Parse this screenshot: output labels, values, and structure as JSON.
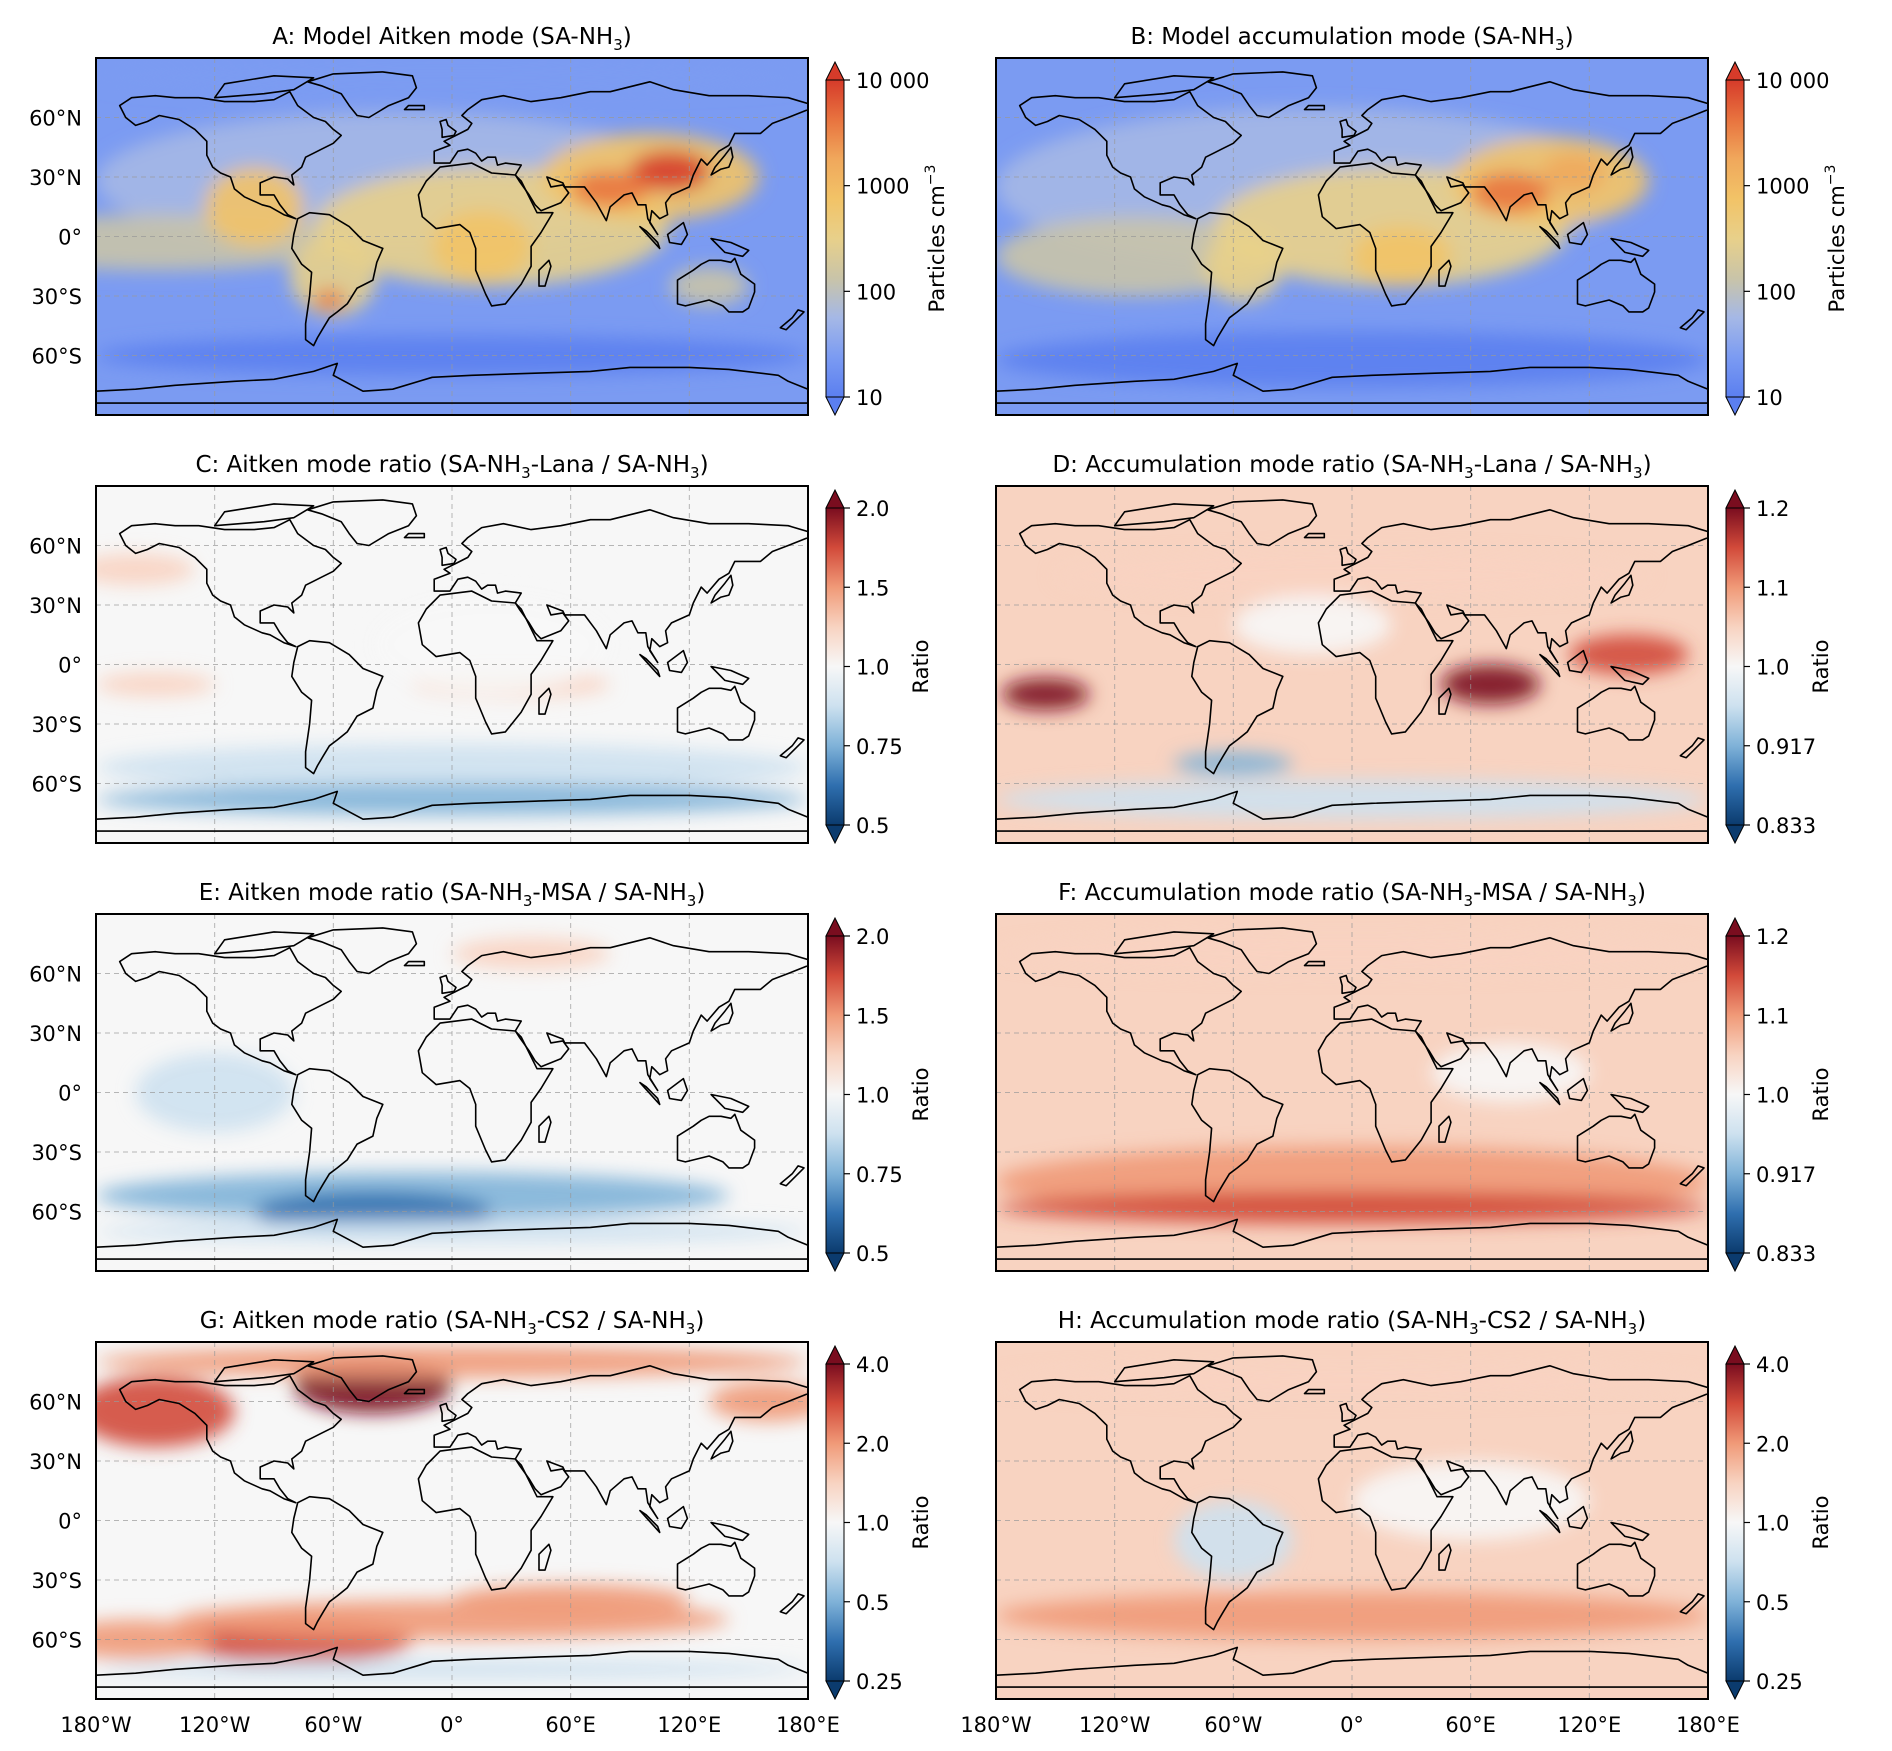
{
  "figure": {
    "x_tick_labels": [
      "180°W",
      "120°W",
      "60°W",
      "0°",
      "60°E",
      "120°E",
      "180°E"
    ],
    "y_tick_labels": [
      "60°N",
      "30°N",
      "0°",
      "30°S",
      "60°S"
    ]
  },
  "colors": {
    "particles_scale": [
      "#5b7ff0",
      "#7b9bf2",
      "#a5b8e6",
      "#c9c4a8",
      "#e8d08a",
      "#f2c367",
      "#f0a85c",
      "#e8733f",
      "#d63b2a"
    ],
    "ratio_scale": [
      "#0b3b6e",
      "#2f6faf",
      "#7fb2d8",
      "#cde1ef",
      "#f7f7f7",
      "#f8d3c1",
      "#f09a78",
      "#d24a3a",
      "#7a0d1f"
    ],
    "ocean_default": "#f3f3f3",
    "coast": "#000000"
  },
  "panels": [
    {
      "id": "A",
      "title_pre": "A: Model Aitken mode (SA-NH",
      "title_sub": "3",
      "title_post": ")",
      "colorbar_label": "Particles cm",
      "colorbar_label_sup": "−3",
      "colorbar_ticks": [
        "10",
        "100",
        "1000",
        "10 000"
      ],
      "scale": "particles",
      "show_y_ticks": true,
      "show_x_ticks": false
    },
    {
      "id": "B",
      "title_pre": "B: Model accumulation mode (SA-NH",
      "title_sub": "3",
      "title_post": ")",
      "colorbar_label": "Particles cm",
      "colorbar_label_sup": "−3",
      "colorbar_ticks": [
        "10",
        "100",
        "1000",
        "10 000"
      ],
      "scale": "particles",
      "show_y_ticks": false,
      "show_x_ticks": false
    },
    {
      "id": "C",
      "title_pre": "C: Aitken mode ratio (SA-NH",
      "title_sub": "3",
      "title_post": "-Lana / SA-NH",
      "title_sub2": "3",
      "title_post2": ")",
      "colorbar_label": "Ratio",
      "colorbar_ticks": [
        "0.5",
        "0.75",
        "1.0",
        "1.5",
        "2.0"
      ],
      "scale": "ratio",
      "show_y_ticks": true,
      "show_x_ticks": false
    },
    {
      "id": "D",
      "title_pre": "D: Accumulation mode ratio (SA-NH",
      "title_sub": "3",
      "title_post": "-Lana / SA-NH",
      "title_sub2": "3",
      "title_post2": ")",
      "colorbar_label": "Ratio",
      "colorbar_ticks": [
        "0.833",
        "0.917",
        "1.0",
        "1.1",
        "1.2"
      ],
      "scale": "ratio",
      "show_y_ticks": false,
      "show_x_ticks": false
    },
    {
      "id": "E",
      "title_pre": "E: Aitken mode ratio (SA-NH",
      "title_sub": "3",
      "title_post": "-MSA / SA-NH",
      "title_sub2": "3",
      "title_post2": ")",
      "colorbar_label": "Ratio",
      "colorbar_ticks": [
        "0.5",
        "0.75",
        "1.0",
        "1.5",
        "2.0"
      ],
      "scale": "ratio",
      "show_y_ticks": true,
      "show_x_ticks": false
    },
    {
      "id": "F",
      "title_pre": "F: Accumulation mode ratio (SA-NH",
      "title_sub": "3",
      "title_post": "-MSA / SA-NH",
      "title_sub2": "3",
      "title_post2": ")",
      "colorbar_label": "Ratio",
      "colorbar_ticks": [
        "0.833",
        "0.917",
        "1.0",
        "1.1",
        "1.2"
      ],
      "scale": "ratio",
      "show_y_ticks": false,
      "show_x_ticks": false
    },
    {
      "id": "G",
      "title_pre": "G: Aitken mode ratio (SA-NH",
      "title_sub": "3",
      "title_post": "-CS2 / SA-NH",
      "title_sub2": "3",
      "title_post2": ")",
      "colorbar_label": "Ratio",
      "colorbar_ticks": [
        "0.25",
        "0.5",
        "1.0",
        "2.0",
        "4.0"
      ],
      "scale": "ratio",
      "show_y_ticks": true,
      "show_x_ticks": true
    },
    {
      "id": "H",
      "title_pre": "H: Accumulation mode ratio (SA-NH",
      "title_sub": "3",
      "title_post": "-CS2 / SA-NH",
      "title_sub2": "3",
      "title_post2": ")",
      "colorbar_label": "Ratio",
      "colorbar_ticks": [
        "0.25",
        "0.5",
        "1.0",
        "2.0",
        "4.0"
      ],
      "scale": "ratio",
      "show_y_ticks": false,
      "show_x_ticks": true
    }
  ]
}
